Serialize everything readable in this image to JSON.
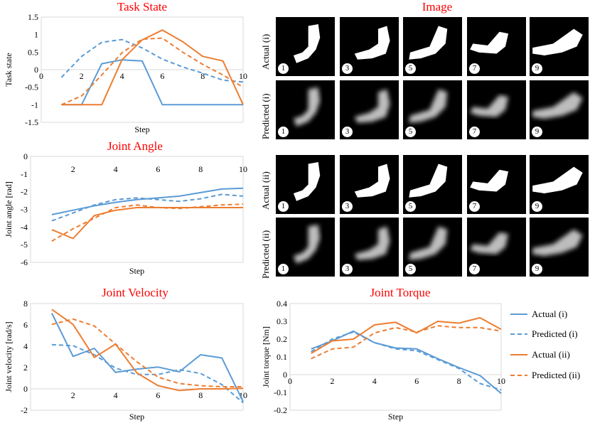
{
  "colors": {
    "blue": "#5b9bd5",
    "orange": "#ed7d31",
    "title": "#ff0000"
  },
  "chart_data": [
    {
      "name": "task-state",
      "type": "line",
      "title": "Task State",
      "xlabel": "Step",
      "ylabel": "Task state",
      "xlim": [
        0,
        10
      ],
      "ylim": [
        -1.5,
        1.5
      ],
      "xticks": [
        0,
        2,
        4,
        6,
        8,
        10
      ],
      "yticks": [
        -1.5,
        -1,
        -0.5,
        0,
        0.5,
        1,
        1.5
      ],
      "series": [
        {
          "name": "Actual (i)",
          "color": "blue",
          "dash": false,
          "x": [
            1,
            2,
            3,
            4,
            5,
            6,
            7,
            8,
            9,
            10
          ],
          "y": [
            -1,
            -1,
            0.17,
            0.28,
            0.25,
            -1,
            -1,
            -1,
            -1,
            -1
          ]
        },
        {
          "name": "Predicted (i)",
          "color": "blue",
          "dash": true,
          "x": [
            1,
            2,
            3,
            4,
            5,
            6,
            7,
            8,
            9,
            10
          ],
          "y": [
            -0.22,
            0.38,
            0.78,
            0.86,
            0.62,
            0.3,
            0.08,
            -0.1,
            -0.3,
            -0.35
          ]
        },
        {
          "name": "Actual (ii)",
          "color": "orange",
          "dash": false,
          "x": [
            1,
            2,
            3,
            4,
            5,
            6,
            7,
            8,
            9,
            10
          ],
          "y": [
            -1,
            -1,
            -1,
            0.28,
            0.85,
            1.13,
            0.8,
            0.38,
            0.25,
            -1
          ]
        },
        {
          "name": "Predicted (ii)",
          "color": "orange",
          "dash": true,
          "x": [
            1,
            2,
            3,
            4,
            5,
            6,
            7,
            8,
            9,
            10
          ],
          "y": [
            -1,
            -0.75,
            -0.15,
            0.48,
            0.87,
            0.9,
            0.5,
            0.15,
            -0.15,
            -0.5
          ]
        }
      ]
    },
    {
      "name": "joint-angle",
      "type": "line",
      "title": "Joint Angle",
      "xlabel": "Step",
      "ylabel": "Joint angle [rad]",
      "xlim": [
        0,
        10
      ],
      "ylim": [
        -6,
        0
      ],
      "xticks": [
        2,
        4,
        6,
        8,
        10
      ],
      "yticks": [
        -6,
        -5,
        -4,
        -3,
        -2,
        -1,
        0
      ],
      "series": [
        {
          "name": "Actual (i)",
          "color": "blue",
          "dash": false,
          "x": [
            1,
            2,
            3,
            4,
            5,
            6,
            7,
            8,
            9,
            10
          ],
          "y": [
            -3.3,
            -3.05,
            -2.8,
            -2.6,
            -2.45,
            -2.35,
            -2.25,
            -2.05,
            -1.85,
            -1.8
          ]
        },
        {
          "name": "Predicted (i)",
          "color": "blue",
          "dash": true,
          "x": [
            1,
            2,
            3,
            4,
            5,
            6,
            7,
            8,
            9,
            10
          ],
          "y": [
            -3.65,
            -3.2,
            -2.75,
            -2.45,
            -2.35,
            -2.45,
            -2.55,
            -2.4,
            -2.15,
            -2.25
          ]
        },
        {
          "name": "Actual (ii)",
          "color": "orange",
          "dash": false,
          "x": [
            1,
            2,
            3,
            4,
            5,
            6,
            7,
            8,
            9,
            10
          ],
          "y": [
            -4.15,
            -4.65,
            -3.35,
            -3.05,
            -2.9,
            -2.9,
            -2.9,
            -2.9,
            -2.9,
            -2.9
          ]
        },
        {
          "name": "Predicted (ii)",
          "color": "orange",
          "dash": true,
          "x": [
            1,
            2,
            3,
            4,
            5,
            6,
            7,
            8,
            9,
            10
          ],
          "y": [
            -4.8,
            -4.1,
            -3.5,
            -2.9,
            -2.75,
            -2.9,
            -2.95,
            -2.85,
            -2.75,
            -2.7
          ]
        }
      ]
    },
    {
      "name": "joint-velocity",
      "type": "line",
      "title": "Joint Velocity",
      "xlabel": "Step",
      "ylabel": "Joint velocity [rad/s]",
      "xlim": [
        0,
        10
      ],
      "ylim": [
        -2,
        8
      ],
      "xticks": [
        2,
        4,
        6,
        8,
        10
      ],
      "yticks": [
        -2,
        0,
        2,
        4,
        6,
        8
      ],
      "series": [
        {
          "name": "Actual (i)",
          "color": "blue",
          "dash": false,
          "x": [
            1,
            2,
            3,
            4,
            5,
            6,
            7,
            8,
            9,
            10
          ],
          "y": [
            7.1,
            3.05,
            3.8,
            1.55,
            1.85,
            2.05,
            1.6,
            3.2,
            2.9,
            -1.2
          ]
        },
        {
          "name": "Predicted (i)",
          "color": "blue",
          "dash": true,
          "x": [
            1,
            2,
            3,
            4,
            5,
            6,
            7,
            8,
            9,
            10
          ],
          "y": [
            4.15,
            4.05,
            3.2,
            1.95,
            1.35,
            1.35,
            1.8,
            1.45,
            0.4,
            -1.3
          ]
        },
        {
          "name": "Actual (ii)",
          "color": "orange",
          "dash": false,
          "x": [
            1,
            2,
            3,
            4,
            5,
            6,
            7,
            8,
            9,
            10
          ],
          "y": [
            7.45,
            6.05,
            2.95,
            4.2,
            1.5,
            0.3,
            -0.15,
            0.0,
            0.0,
            0.05
          ]
        },
        {
          "name": "Predicted (ii)",
          "color": "orange",
          "dash": true,
          "x": [
            1,
            2,
            3,
            4,
            5,
            6,
            7,
            8,
            9,
            10
          ],
          "y": [
            6.05,
            6.55,
            5.9,
            4.2,
            2.55,
            1.1,
            0.5,
            0.3,
            0.2,
            0.2
          ]
        }
      ]
    },
    {
      "name": "joint-torque",
      "type": "line",
      "title": "Joint Torque",
      "xlabel": "Step",
      "ylabel": "Joint torque [Nm]",
      "xlim": [
        0,
        10
      ],
      "ylim": [
        -0.2,
        0.4
      ],
      "xticks": [
        0,
        2,
        4,
        6,
        8,
        10
      ],
      "yticks": [
        -0.2,
        -0.1,
        0,
        0.1,
        0.2,
        0.3,
        0.4
      ],
      "series": [
        {
          "name": "Actual (i)",
          "color": "blue",
          "dash": false,
          "x": [
            1,
            2,
            3,
            4,
            5,
            6,
            7,
            8,
            9,
            10
          ],
          "y": [
            0.145,
            0.19,
            0.245,
            0.18,
            0.15,
            0.145,
            0.09,
            0.04,
            -0.005,
            -0.105
          ]
        },
        {
          "name": "Predicted (i)",
          "color": "blue",
          "dash": true,
          "x": [
            1,
            2,
            3,
            4,
            5,
            6,
            7,
            8,
            9,
            10
          ],
          "y": [
            0.13,
            0.2,
            0.24,
            0.18,
            0.145,
            0.135,
            0.085,
            0.035,
            -0.05,
            -0.085
          ]
        },
        {
          "name": "Actual (ii)",
          "color": "orange",
          "dash": false,
          "x": [
            1,
            2,
            3,
            4,
            5,
            6,
            7,
            8,
            9,
            10
          ],
          "y": [
            0.12,
            0.19,
            0.2,
            0.28,
            0.295,
            0.235,
            0.3,
            0.29,
            0.32,
            0.255
          ]
        },
        {
          "name": "Predicted (ii)",
          "color": "orange",
          "dash": true,
          "x": [
            1,
            2,
            3,
            4,
            5,
            6,
            7,
            8,
            9,
            10
          ],
          "y": [
            0.09,
            0.145,
            0.155,
            0.235,
            0.265,
            0.24,
            0.275,
            0.265,
            0.265,
            0.245
          ]
        }
      ]
    }
  ],
  "image_panel": {
    "title": "Image",
    "rows": [
      {
        "label": "Actual (i)",
        "style": "binary"
      },
      {
        "label": "Predicted (i)",
        "style": "blurry"
      },
      {
        "label": "Actual (ii)",
        "style": "binary"
      },
      {
        "label": "Predicted (ii)",
        "style": "blurry"
      }
    ],
    "steps": [
      "1",
      "3",
      "5",
      "7",
      "9"
    ]
  },
  "legend": [
    {
      "label": "Actual (i)",
      "color": "blue",
      "dash": false
    },
    {
      "label": "Predicted (i)",
      "color": "blue",
      "dash": true
    },
    {
      "label": "Actual (ii)",
      "color": "orange",
      "dash": false
    },
    {
      "label": "Predicted (ii)",
      "color": "orange",
      "dash": true
    }
  ]
}
